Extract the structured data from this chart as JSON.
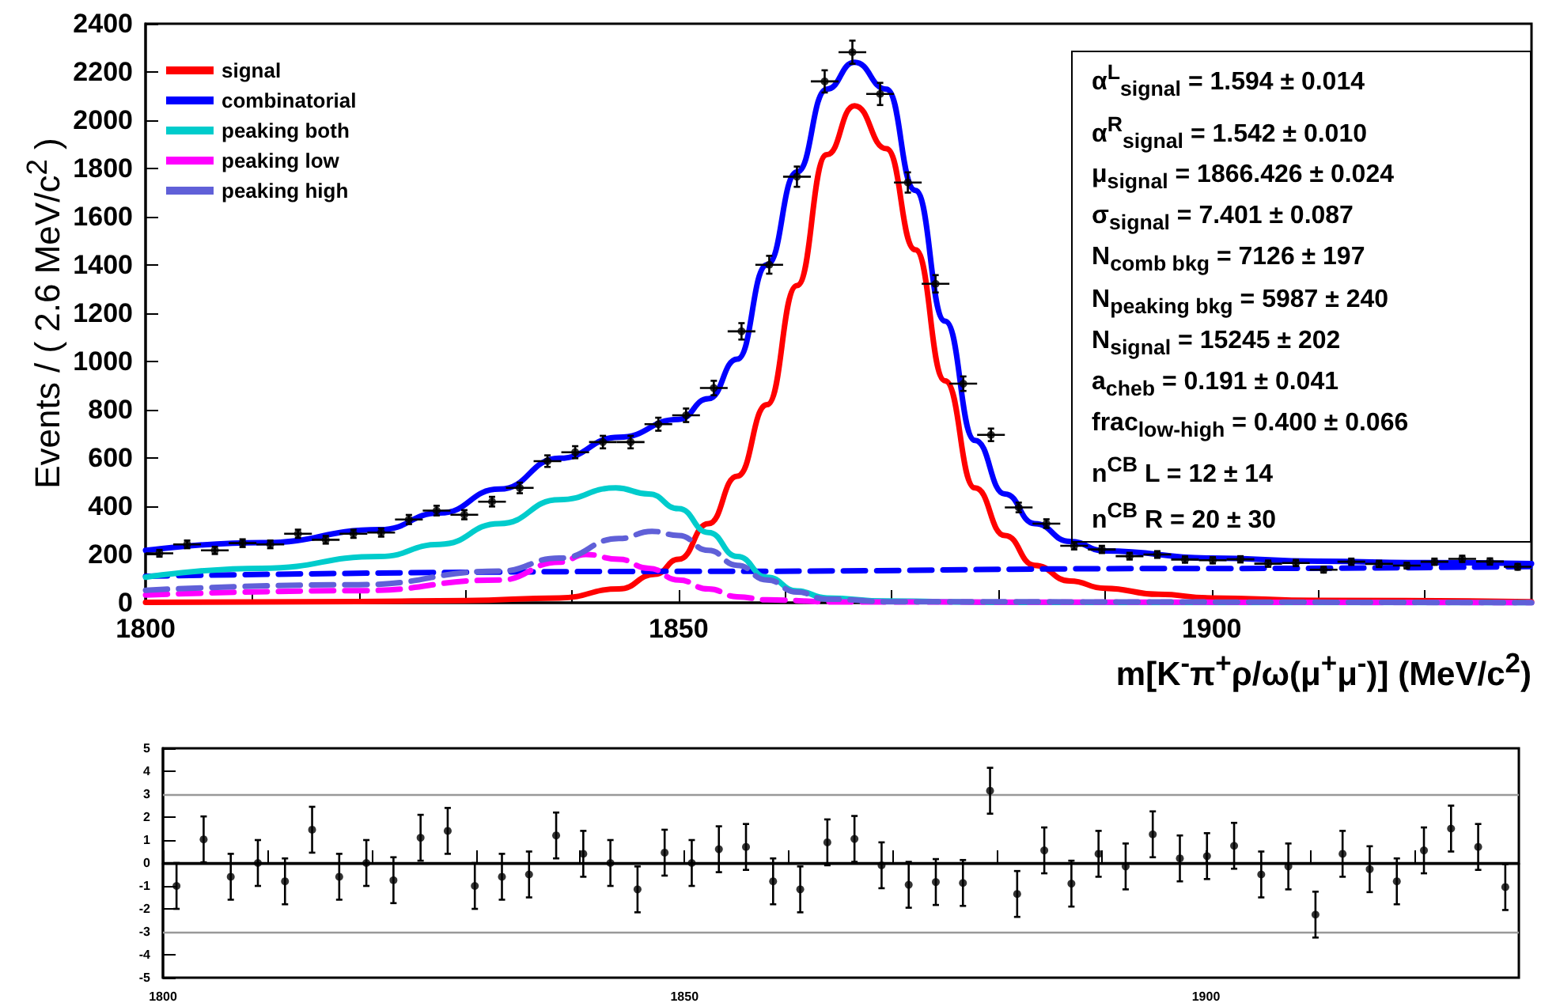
{
  "chart_data": [
    {
      "type": "line",
      "ylabel": "Events / ( 2.6 MeV/c$^{2}$ )",
      "xlabel": "m[K$^{-}$π$^{+}$ρ/ω(μ$^{+}$μ$^{-}$)] (MeV/c$^{2}$)",
      "xlim": [
        1800,
        1930
      ],
      "xticks": [
        1800,
        {
          "value": 1810,
          "label": null
        },
        {
          "value": 1820,
          "label": null
        },
        {
          "value": 1830,
          "label": null
        },
        {
          "value": 1840,
          "label": null
        },
        1850,
        {
          "value": 1860,
          "label": null
        },
        {
          "value": 1870,
          "label": null
        },
        {
          "value": 1880,
          "label": null
        },
        {
          "value": 1890,
          "label": null
        },
        1900,
        {
          "value": 1910,
          "label": null
        },
        {
          "value": 1920,
          "label": null
        }
      ],
      "ylim": [
        0,
        2400
      ],
      "yticks": [
        0,
        200,
        400,
        600,
        800,
        1000,
        1200,
        1400,
        1600,
        1800,
        2000,
        2200,
        2400
      ],
      "grid": false,
      "legend": "top left",
      "series": [
        {
          "type": "scatter",
          "marker": "circle",
          "color": "#000000",
          "x": [
            1801.3,
            1803.9,
            1806.5,
            1809.1,
            1811.7,
            1814.3,
            1816.9,
            1819.5,
            1822.1,
            1824.7,
            1827.3,
            1829.9,
            1832.5,
            1835.1,
            1837.7,
            1840.3,
            1842.9,
            1845.5,
            1848.1,
            1850.7,
            1853.3,
            1855.9,
            1858.5,
            1861.1,
            1863.7,
            1866.3,
            1868.9,
            1871.5,
            1874.1,
            1876.7,
            1879.3,
            1881.9,
            1884.5,
            1887.1,
            1889.7,
            1892.3,
            1894.9,
            1897.5,
            1900.1,
            1902.7,
            1905.3,
            1907.9,
            1910.5,
            1913.1,
            1915.7,
            1918.3,
            1920.9,
            1923.5,
            1926.1,
            1928.7
          ],
          "values": [
            205,
            242,
            217,
            247,
            242,
            286,
            261,
            286,
            291,
            345,
            382,
            365,
            419,
            476,
            587,
            624,
            666,
            666,
            740,
            777,
            890,
            1125,
            1401,
            1766,
            2161,
            2282,
            2109,
            1742,
            1322,
            908,
            696,
            395,
            328,
            236,
            221,
            193,
            200,
            179,
            176,
            180,
            162,
            165,
            137,
            170,
            161,
            154,
            170,
            182,
            171,
            149
          ],
          "errors": [
            14,
            16,
            15,
            16,
            16,
            17,
            16,
            17,
            17,
            19,
            20,
            19,
            20,
            22,
            24,
            25,
            26,
            26,
            27,
            28,
            30,
            34,
            37,
            42,
            46,
            48,
            46,
            42,
            36,
            30,
            26,
            20,
            18,
            15,
            15,
            14,
            14,
            13,
            13,
            13,
            13,
            13,
            12,
            13,
            13,
            12,
            13,
            13,
            13,
            12
          ],
          "xerrors": [
            1.3,
            1.3,
            1.3,
            1.3,
            1.3,
            1.3,
            1.3,
            1.3,
            1.3,
            1.3,
            1.3,
            1.3,
            1.3,
            1.3,
            1.3,
            1.3,
            1.3,
            1.3,
            1.3,
            1.3,
            1.3,
            1.3,
            1.3,
            1.3,
            1.3,
            1.3,
            1.3,
            1.3,
            1.3,
            1.3,
            1.3,
            1.3,
            1.3,
            1.3,
            1.3,
            1.3,
            1.3,
            1.3,
            1.3,
            1.3,
            1.3,
            1.3,
            1.3,
            1.3,
            1.3,
            1.3,
            1.3,
            1.3,
            1.3,
            1.3
          ]
        },
        {
          "type": "line",
          "color": "#0000ff",
          "x": [
            1800,
            1810.9,
            1822,
            1827.6,
            1833.2,
            1838.8,
            1844.4,
            1850,
            1852.8,
            1855.5,
            1858.3,
            1861.1,
            1863.9,
            1866.5,
            1869.5,
            1872.2,
            1875,
            1877.8,
            1880.6,
            1883.4,
            1886.7,
            1890,
            1900,
            1910,
            1920,
            1930
          ],
          "values": [
            217,
            249,
            303,
            372,
            471,
            599,
            686,
            760,
            846,
            1010,
            1401,
            1785,
            2129,
            2240,
            2129,
            1709,
            1167,
            673,
            451,
            328,
            254,
            215,
            185,
            172,
            166,
            162
          ]
        },
        {
          "name": "signal",
          "color": "#ff0000",
          "x": [
            1800,
            1820,
            1830,
            1838.8,
            1844.4,
            1847.8,
            1850,
            1852.8,
            1855.5,
            1858.3,
            1861.1,
            1863.9,
            1866.5,
            1869.5,
            1872.2,
            1875,
            1877.8,
            1880.6,
            1883.4,
            1886.7,
            1890,
            1895,
            1900,
            1910,
            1930
          ],
          "values": [
            2,
            5,
            9,
            20,
            57,
            118,
            180,
            328,
            525,
            821,
            1315,
            1857,
            2060,
            1882,
            1463,
            920,
            476,
            279,
            155,
            90,
            60,
            35,
            20,
            10,
            4
          ]
        },
        {
          "name": "combinatorial",
          "color": "#0000ff",
          "line_style": "dashed",
          "x": [
            1800,
            1850,
            1900,
            1930
          ],
          "values": [
            110,
            130,
            142,
            150
          ]
        },
        {
          "name": "peaking both",
          "color": "#00cccc",
          "x": [
            1800,
            1810.9,
            1822,
            1827.6,
            1833.2,
            1838.8,
            1844.1,
            1847.2,
            1850,
            1852.8,
            1855.5,
            1858.3,
            1861.1,
            1863.9,
            1869.5,
            1880,
            1930
          ],
          "values": [
            106,
            143,
            192,
            242,
            328,
            427,
            476,
            451,
            390,
            291,
            192,
            106,
            49,
            20,
            7,
            2,
            0
          ]
        },
        {
          "name": "peaking low",
          "color": "#ff00ff",
          "line_style": "dashed",
          "x": [
            1800,
            1820,
            1833.2,
            1838.8,
            1841.3,
            1844.4,
            1847.2,
            1850,
            1852.8,
            1855.5,
            1858.3,
            1865,
            1930
          ],
          "values": [
            32,
            50,
            94,
            168,
            200,
            180,
            143,
            94,
            57,
            25,
            12,
            3,
            0
          ]
        },
        {
          "name": "peaking high",
          "color": "#6060d8",
          "line_style": "dashed",
          "x": [
            1800,
            1820,
            1833.2,
            1838.8,
            1844.4,
            1847.5,
            1850,
            1852.8,
            1855.5,
            1858.3,
            1861.1,
            1863.9,
            1870,
            1930
          ],
          "values": [
            52,
            75,
            131,
            185,
            266,
            296,
            279,
            217,
            155,
            94,
            44,
            15,
            4,
            0
          ]
        }
      ],
      "annotations": [
        "α$^{L}$$_{signal}$ = 1.594 ± 0.014",
        "α$^{R}$$_{signal}$ = 1.542 ± 0.010",
        "μ$_{signal}$ = 1866.426 ± 0.024",
        "σ$_{signal}$ = 7.401 ± 0.087",
        "N$_{comb bkg}$ = 7126 ± 197",
        "N$_{peaking bkg}$ = 5987 ± 240",
        "N$_{signal}$ = 15245 ± 202",
        "a$_{cheb}$ = 0.191 ± 0.041",
        "frac$_{low-high}$ = 0.400 ± 0.066",
        "n$^{CB}$ L = 12 ± 14",
        "n$^{CB}$ R = 20 ± 30"
      ]
    },
    {
      "type": "scatter",
      "marker": "circle",
      "grid": false,
      "xlim": [
        1800,
        1930
      ],
      "xticks": [
        1800,
        {
          "value": 1810,
          "label": null
        },
        {
          "value": 1820,
          "label": null
        },
        {
          "value": 1830,
          "label": null
        },
        {
          "value": 1840,
          "label": null
        },
        1850,
        {
          "value": 1860,
          "label": null
        },
        {
          "value": 1870,
          "label": null
        },
        {
          "value": 1880,
          "label": null
        },
        {
          "value": 1890,
          "label": null
        },
        1900,
        {
          "value": 1910,
          "label": null
        },
        {
          "value": 1920,
          "label": null
        }
      ],
      "ylim": [
        -5,
        5
      ],
      "yticks": [
        -5,
        -4,
        -3,
        -2,
        -1,
        0,
        1,
        2,
        3,
        4,
        5
      ],
      "ref_lines": [
        {
          "axis": "y",
          "value": 3,
          "color": "#999999"
        },
        {
          "axis": "y",
          "value": 0,
          "color": "#000000"
        },
        {
          "axis": "y",
          "value": -3,
          "color": "#999999"
        }
      ],
      "series": [
        {
          "color": "#000000",
          "x": [
            1801.3,
            1803.9,
            1806.5,
            1809.1,
            1811.7,
            1814.3,
            1816.9,
            1819.5,
            1822.1,
            1824.7,
            1827.3,
            1829.9,
            1832.5,
            1835.1,
            1837.7,
            1840.3,
            1842.9,
            1845.5,
            1848.1,
            1850.7,
            1853.3,
            1855.9,
            1858.5,
            1861.1,
            1863.7,
            1866.3,
            1868.9,
            1871.5,
            1874.1,
            1876.7,
            1879.3,
            1881.9,
            1884.5,
            1887.1,
            1889.7,
            1892.3,
            1894.9,
            1897.5,
            1900.1,
            1902.7,
            1905.3,
            1907.9,
            1910.5,
            1913.1,
            1915.7,
            1918.3,
            1920.9,
            1923.5,
            1926.1,
            1928.7
          ],
          "values": [
            -1.0,
            1.03,
            -0.6,
            0.0,
            -0.8,
            1.45,
            -0.6,
            0.0,
            -0.75,
            1.1,
            1.4,
            -1.0,
            -0.6,
            -0.5,
            1.2,
            0.4,
            0.0,
            -1.15,
            0.45,
            0.0,
            0.6,
            0.7,
            -0.8,
            -1.15,
            0.9,
            1.05,
            -0.1,
            -0.95,
            -0.83,
            -0.87,
            3.15,
            -1.35,
            0.55,
            -0.9,
            0.4,
            -0.15,
            1.25,
            0.2,
            0.3,
            0.75,
            -0.5,
            -0.15,
            -2.25,
            0.4,
            -0.27,
            -0.8,
            0.55,
            1.5,
            0.7,
            -1.05
          ],
          "errors": [
            1,
            1,
            1,
            1,
            1,
            1,
            1,
            1,
            1,
            1,
            1,
            1,
            1,
            1,
            1,
            1,
            1,
            1,
            1,
            1,
            1,
            1,
            1,
            1,
            1,
            1,
            1,
            1,
            1,
            1,
            1,
            1,
            1,
            1,
            1,
            1,
            1,
            1,
            1,
            1,
            1,
            1,
            1,
            1,
            1,
            1,
            1,
            1,
            1,
            1
          ]
        }
      ]
    }
  ]
}
